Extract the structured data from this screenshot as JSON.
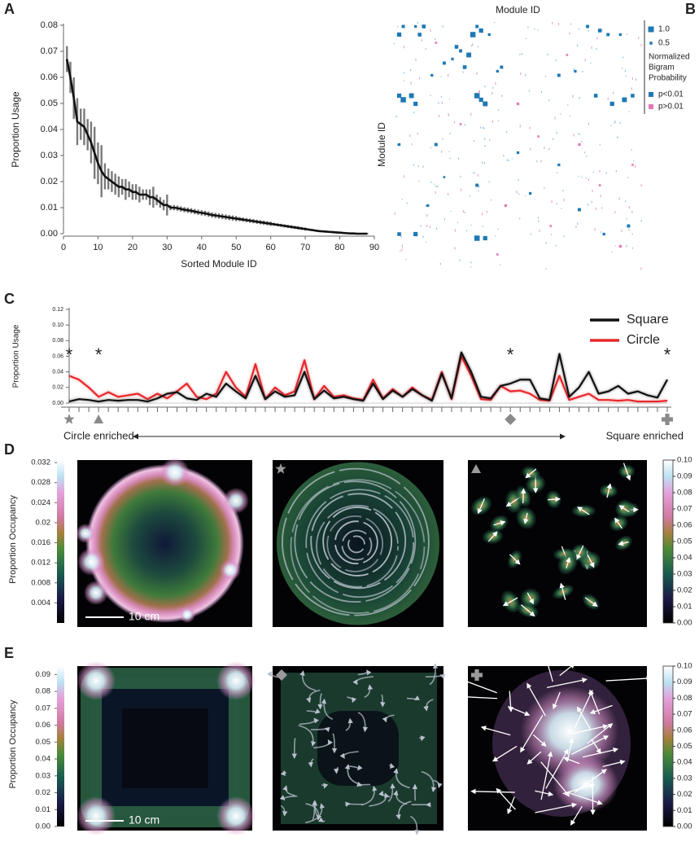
{
  "chart_data": [
    {
      "type": "line",
      "panel": "A",
      "xlabel": "Sorted Module ID",
      "ylabel": "Proportion Usage",
      "color": "#111111",
      "error_color": "#7a7a7a",
      "xlim": [
        0,
        90
      ],
      "xticks": [
        0,
        10,
        20,
        30,
        40,
        50,
        60,
        70,
        80,
        90
      ],
      "ylim": [
        0,
        0.08
      ],
      "yticks": [
        {
          "value": 0,
          "label": "0.00"
        },
        {
          "value": 0.01,
          "label": "0.01"
        },
        {
          "value": 0.02,
          "label": "0.02"
        },
        {
          "value": 0.03,
          "label": "0.03"
        },
        {
          "value": 0.04,
          "label": "0.04"
        },
        {
          "value": 0.05,
          "label": "0.05"
        },
        {
          "value": 0.06,
          "label": "0.06"
        },
        {
          "value": 0.07,
          "label": "0.07"
        },
        {
          "value": 0.08,
          "label": "0.08"
        }
      ],
      "x": [
        1,
        2,
        3,
        4,
        5,
        6,
        7,
        8,
        9,
        10,
        11,
        12,
        13,
        14,
        15,
        16,
        17,
        18,
        19,
        20,
        21,
        22,
        23,
        24,
        25,
        26,
        27,
        28,
        29,
        30,
        31,
        32,
        33,
        34,
        35,
        36,
        37,
        38,
        39,
        40,
        41,
        42,
        43,
        44,
        45,
        46,
        47,
        48,
        49,
        50,
        51,
        52,
        53,
        54,
        55,
        56,
        57,
        58,
        59,
        60,
        61,
        62,
        63,
        64,
        65,
        66,
        67,
        68,
        69,
        70,
        71,
        72,
        73,
        74,
        75,
        76,
        77,
        78,
        79,
        80,
        81,
        82,
        83,
        84,
        85,
        86,
        87,
        88
      ],
      "values": [
        0.067,
        0.06,
        0.052,
        0.043,
        0.042,
        0.041,
        0.038,
        0.035,
        0.031,
        0.027,
        0.024,
        0.022,
        0.021,
        0.02,
        0.019,
        0.018,
        0.018,
        0.017,
        0.017,
        0.016,
        0.016,
        0.015,
        0.015,
        0.015,
        0.014,
        0.014,
        0.013,
        0.012,
        0.011,
        0.011,
        0.01,
        0.01,
        0.0098,
        0.0095,
        0.0092,
        0.009,
        0.0088,
        0.0085,
        0.0082,
        0.008,
        0.0078,
        0.0075,
        0.0072,
        0.007,
        0.0068,
        0.0066,
        0.0064,
        0.0062,
        0.006,
        0.0058,
        0.0056,
        0.0054,
        0.0052,
        0.005,
        0.0048,
        0.0046,
        0.0044,
        0.0042,
        0.004,
        0.0038,
        0.0036,
        0.0034,
        0.0032,
        0.003,
        0.0028,
        0.0026,
        0.0024,
        0.0022,
        0.002,
        0.0018,
        0.0016,
        0.0014,
        0.0012,
        0.001,
        0.0009,
        0.0008,
        0.0007,
        0.0006,
        0.0005,
        0.0004,
        0.0003,
        0.0002,
        0.0001,
        0.0001,
        0,
        0,
        0,
        0
      ],
      "errors": [
        0.005,
        0.006,
        0.008,
        0.009,
        0.006,
        0.007,
        0.006,
        0.008,
        0.01,
        0.008,
        0.01,
        0.005,
        0.004,
        0.004,
        0.004,
        0.004,
        0.003,
        0.004,
        0.003,
        0.003,
        0.003,
        0.003,
        0.002,
        0.002,
        0.003,
        0.004,
        0.002,
        0.002,
        0.002,
        0.004,
        0.001,
        0.001,
        0.001,
        0.001,
        0.001,
        0.001,
        0.001,
        0.001,
        0.001,
        0.001,
        0.001,
        0.001,
        0.001,
        0.001,
        0.001,
        0.001,
        0.001,
        0.001,
        0.001,
        0.001,
        0.0008,
        0.0008,
        0.0008,
        0.0008,
        0.0008,
        0.0008,
        0.0008,
        0.0008,
        0.0008,
        0.0008,
        0.0006,
        0.0006,
        0.0006,
        0.0006,
        0.0006,
        0.0006,
        0.0006,
        0.0006,
        0.0006,
        0.0006,
        0.0004,
        0.0004,
        0.0004,
        0.0004,
        0.0004,
        0.0004,
        0.0004,
        0.0004,
        0.0004,
        0.0004,
        0.0002,
        0.0002,
        0.0002,
        0.0002,
        0.0002,
        0.0002,
        0.0002,
        0.0002
      ]
    },
    {
      "type": "scatter",
      "panel": "B",
      "xlabel": "Module ID",
      "ylabel": "Module ID",
      "xlim": [
        0,
        60
      ],
      "ylim": [
        0,
        60
      ],
      "size_legend": [
        {
          "value": 1.0,
          "label": "1.0"
        },
        {
          "value": 0.5,
          "label": "0.5"
        }
      ],
      "size_legend_title": [
        "Normalized",
        "Bigram",
        "Probability"
      ],
      "series": [
        {
          "name": "p<0.01",
          "color": "#1f78b4",
          "x": [
            2,
            5,
            7,
            20,
            21,
            23,
            47,
            50,
            52,
            1,
            6,
            19,
            55,
            15,
            16,
            18,
            14,
            12,
            17,
            25,
            26,
            9,
            40,
            44,
            1,
            2,
            4,
            5,
            20,
            22,
            21,
            49,
            53,
            56,
            58,
            1,
            10,
            30,
            40,
            20,
            8,
            45,
            1,
            5,
            20,
            22,
            51,
            57,
            33,
            12
          ],
          "y": [
            1,
            1,
            1,
            1,
            2,
            3,
            1,
            2,
            3,
            3,
            3,
            3,
            3,
            6,
            7,
            8,
            9,
            10,
            11,
            12,
            11,
            13,
            13,
            12,
            18,
            19,
            18,
            20,
            18,
            20,
            19,
            18,
            20,
            19,
            18,
            30,
            30,
            32,
            35,
            40,
            45,
            46,
            52,
            52,
            53,
            53,
            52,
            50,
            42,
            38
          ],
          "values": [
            0.6,
            0.5,
            0.7,
            0.6,
            0.8,
            0.5,
            0.6,
            0.7,
            0.6,
            0.8,
            0.7,
            1.0,
            0.5,
            0.7,
            0.6,
            0.9,
            0.5,
            0.6,
            0.7,
            0.5,
            0.6,
            0.5,
            0.6,
            0.5,
            0.8,
            1.0,
            0.9,
            0.8,
            1.0,
            0.9,
            0.8,
            0.7,
            0.8,
            0.9,
            0.7,
            0.5,
            0.6,
            0.5,
            0.5,
            0.6,
            0.5,
            0.6,
            0.7,
            0.8,
            1.0,
            0.8,
            0.5,
            0.6,
            0.5,
            0.4
          ]
        },
        {
          "name": "p>0.01",
          "color": "#e07bb5",
          "x": [
            10,
            30,
            35,
            45,
            50,
            27,
            38,
            55,
            16,
            42,
            58,
            25
          ],
          "y": [
            5,
            20,
            28,
            30,
            40,
            45,
            50,
            55,
            25,
            8,
            35,
            57
          ],
          "values": [
            0.4,
            0.5,
            0.4,
            0.5,
            0.4,
            0.5,
            0.4,
            0.5,
            0.4,
            0.4,
            0.4,
            0.4
          ]
        }
      ]
    },
    {
      "type": "line",
      "panel": "C",
      "ylabel": "Proportion Usage",
      "legend": "upper right",
      "ylim": [
        0,
        0.12
      ],
      "yticks": [
        {
          "value": 0,
          "label": "0.00"
        },
        {
          "value": 0.02,
          "label": "0.02"
        },
        {
          "value": 0.04,
          "label": "0.04"
        },
        {
          "value": 0.06,
          "label": "0.06"
        },
        {
          "value": 0.08,
          "label": "0.08"
        },
        {
          "value": 0.1,
          "label": "0.10"
        },
        {
          "value": 0.12,
          "label": "0.12"
        }
      ],
      "categories": [
        null,
        null,
        null,
        null,
        null,
        null,
        null,
        null,
        null,
        null,
        null,
        null,
        null,
        null,
        null,
        null,
        null,
        null,
        null,
        null,
        null,
        null,
        null,
        null,
        null,
        null,
        null,
        null,
        null,
        null,
        null,
        null,
        null,
        null,
        null,
        null,
        null,
        null,
        null,
        null,
        null,
        null,
        null,
        null,
        null,
        null,
        null,
        null,
        null,
        null,
        null,
        null,
        null,
        null,
        null,
        null,
        null,
        null,
        null,
        null,
        null,
        null
      ],
      "series": [
        {
          "name": "Square",
          "color": "#111111",
          "values": [
            0.002,
            0.005,
            0.004,
            0.002,
            0.004,
            0.003,
            0.004,
            0.004,
            0.002,
            0.006,
            0.012,
            0.014,
            0.006,
            0.004,
            0.012,
            0.008,
            0.025,
            0.015,
            0.006,
            0.035,
            0.005,
            0.015,
            0.008,
            0.01,
            0.04,
            0.005,
            0.016,
            0.006,
            0.008,
            0.005,
            0.003,
            0.025,
            0.005,
            0.016,
            0.008,
            0.018,
            0.01,
            0.003,
            0.038,
            0.006,
            0.065,
            0.04,
            0.008,
            0.006,
            0.022,
            0.025,
            0.03,
            0.03,
            0.006,
            0.004,
            0.063,
            0.008,
            0.02,
            0.04,
            0.012,
            0.015,
            0.022,
            0.012,
            0.015,
            0.01,
            0.007,
            0.03
          ]
        },
        {
          "name": "Circle",
          "color": "#e8282b",
          "values": [
            0.035,
            0.03,
            0.02,
            0.008,
            0.014,
            0.008,
            0.01,
            0.012,
            0.005,
            0.012,
            0.006,
            0.015,
            0.025,
            0.008,
            0.005,
            0.012,
            0.04,
            0.02,
            0.008,
            0.05,
            0.005,
            0.02,
            0.01,
            0.015,
            0.055,
            0.005,
            0.022,
            0.008,
            0.01,
            0.006,
            0.004,
            0.03,
            0.006,
            0.018,
            0.008,
            0.02,
            0.01,
            0.004,
            0.04,
            0.005,
            0.06,
            0.035,
            0.005,
            0.004,
            0.022,
            0.015,
            0.016,
            0.012,
            0.004,
            0.003,
            0.035,
            0.004,
            0.008,
            0.012,
            0.004,
            0.004,
            0.003,
            0.004,
            0.002,
            0.002,
            0.002,
            0.003
          ]
        }
      ],
      "annotations": [
        "*",
        "*",
        "*",
        "*"
      ],
      "left_label": "Circle enriched",
      "right_label": "Square enriched"
    },
    {
      "type": "image",
      "panel": "D",
      "colorbar_label": "Proportion Occupancy",
      "scale_bar": "10 cm",
      "clim": [
        0,
        0.0325
      ],
      "colorbar_ticks": [
        0.004,
        0.008,
        0.012,
        0.016,
        0.02,
        0.024,
        0.028,
        0.032
      ],
      "clim2": [
        0,
        0.1
      ],
      "colorbar2_ticks": [
        {
          "value": 0,
          "label": "0.00"
        },
        {
          "value": 0.01,
          "label": "0.01"
        },
        {
          "value": 0.02,
          "label": "0.02"
        },
        {
          "value": 0.03,
          "label": "0.03"
        },
        {
          "value": 0.04,
          "label": "0.04"
        },
        {
          "value": 0.05,
          "label": "0.05"
        },
        {
          "value": 0.06,
          "label": "0.06"
        },
        {
          "value": 0.07,
          "label": "0.07"
        },
        {
          "value": 0.08,
          "label": "0.08"
        },
        {
          "value": 0.09,
          "label": "0.09"
        },
        {
          "value": 0.1,
          "label": "0.10"
        }
      ]
    },
    {
      "type": "image",
      "panel": "E",
      "colorbar_label": "Proportion Occupancy",
      "scale_bar": "10 cm",
      "clim": [
        0,
        0.095
      ],
      "colorbar_ticks": [
        {
          "value": 0,
          "label": "0.00"
        },
        {
          "value": 0.01,
          "label": "0.01"
        },
        {
          "value": 0.02,
          "label": "0.02"
        },
        {
          "value": 0.03,
          "label": "0.03"
        },
        {
          "value": 0.04,
          "label": "0.04"
        },
        {
          "value": 0.05,
          "label": "0.05"
        },
        {
          "value": 0.06,
          "label": "0.06"
        },
        {
          "value": 0.07,
          "label": "0.07"
        },
        {
          "value": 0.08,
          "label": "0.08"
        },
        {
          "value": 0.09,
          "label": "0.09"
        }
      ],
      "clim2": [
        0,
        0.1
      ],
      "colorbar2_ticks": [
        {
          "value": 0,
          "label": "0.00"
        },
        {
          "value": 0.01,
          "label": "0.01"
        },
        {
          "value": 0.02,
          "label": "0.02"
        },
        {
          "value": 0.03,
          "label": "0.03"
        },
        {
          "value": 0.04,
          "label": "0.04"
        },
        {
          "value": 0.05,
          "label": "0.05"
        },
        {
          "value": 0.06,
          "label": "0.06"
        },
        {
          "value": 0.07,
          "label": "0.07"
        },
        {
          "value": 0.08,
          "label": "0.08"
        },
        {
          "value": 0.09,
          "label": "0.09"
        },
        {
          "value": 0.1,
          "label": "0.10"
        }
      ]
    }
  ]
}
